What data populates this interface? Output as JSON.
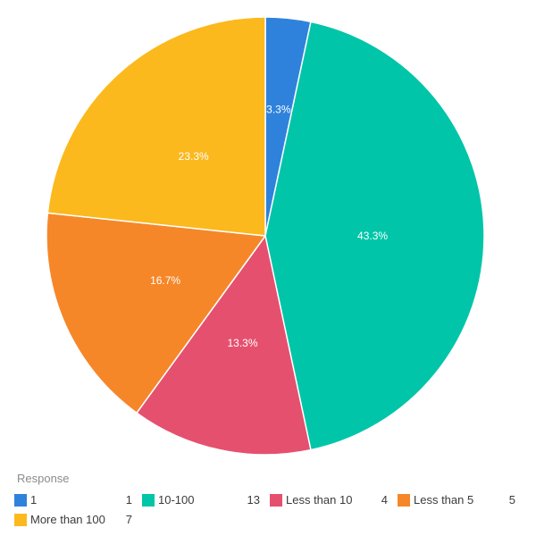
{
  "chart_data": {
    "type": "pie",
    "title": "",
    "legend_title": "Response",
    "legend_position": "bottom",
    "direction": "clockwise",
    "start_angle_deg": 0,
    "total": 30,
    "slice_border_color": "#FFFFFF",
    "label_color": "#FFFFFF",
    "legend_title_color": "#8B8B8B",
    "legend_text_color": "#3B3B3B",
    "slices": [
      {
        "label": "1",
        "value": 1,
        "pct_label": "3.3%",
        "color": "#2E82DC",
        "label_r": 0.58
      },
      {
        "label": "10-100",
        "value": 13,
        "pct_label": "43.3%",
        "color": "#00C5A8",
        "label_r": 0.49
      },
      {
        "label": "Less than 10",
        "value": 4,
        "pct_label": "13.3%",
        "color": "#E5506E",
        "label_r": 0.5
      },
      {
        "label": "Less than 5",
        "value": 5,
        "pct_label": "16.7%",
        "color": "#F68728",
        "label_r": 0.5
      },
      {
        "label": "More than 100",
        "value": 7,
        "pct_label": "23.3%",
        "color": "#FBB91E",
        "label_r": 0.49
      }
    ]
  }
}
